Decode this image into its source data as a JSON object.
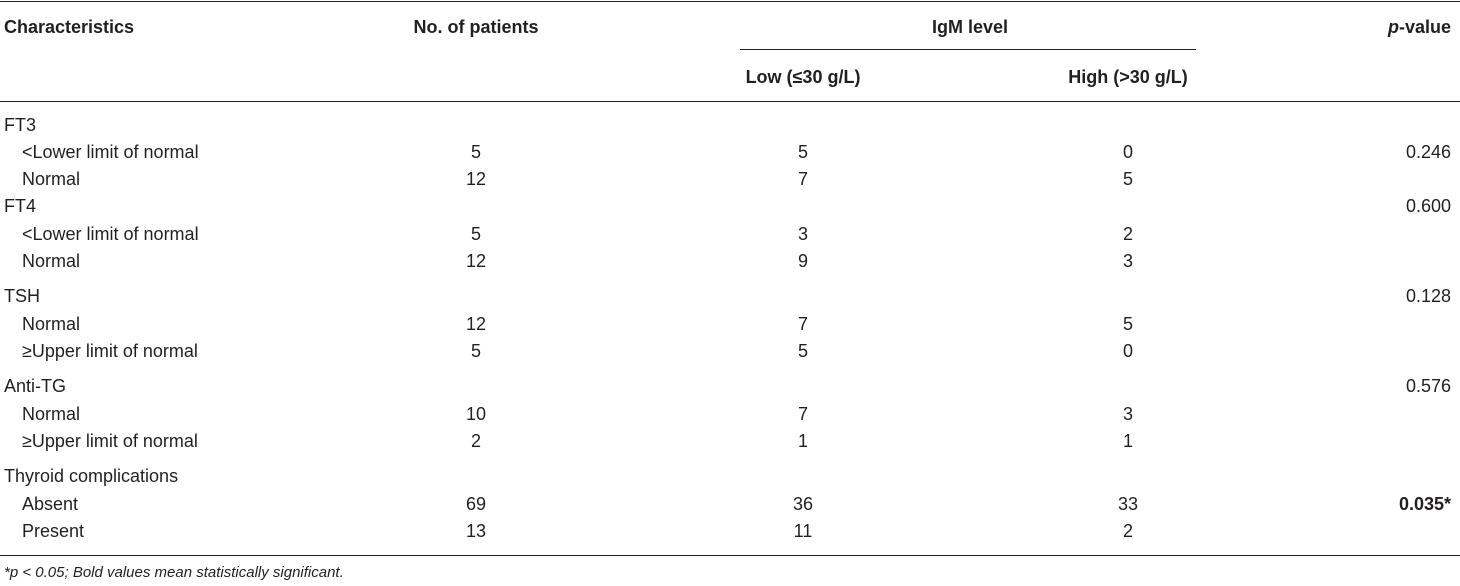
{
  "header": {
    "characteristics": "Characteristics",
    "no_patients": "No. of patients",
    "igm_level": "IgM level",
    "low": "Low (≤30 g/L)",
    "high": "High (>30 g/L)",
    "pvalue_italic": "p",
    "pvalue_rest": "-value"
  },
  "rows": [
    {
      "label": "FT3",
      "n": "",
      "low": "",
      "high": "",
      "p": ""
    },
    {
      "label": "<Lower limit of normal",
      "n": "5",
      "low": "5",
      "high": "0",
      "p": "0.246"
    },
    {
      "label": "Normal",
      "n": "12",
      "low": "7",
      "high": "5",
      "p": ""
    },
    {
      "label": "FT4",
      "n": "",
      "low": "",
      "high": "",
      "p": "0.600"
    },
    {
      "label": "<Lower limit of normal",
      "n": "5",
      "low": "3",
      "high": "2",
      "p": ""
    },
    {
      "label": "Normal",
      "n": "12",
      "low": "9",
      "high": "3",
      "p": ""
    },
    {
      "label": "TSH",
      "n": "",
      "low": "",
      "high": "",
      "p": "0.128"
    },
    {
      "label": "Normal",
      "n": "12",
      "low": "7",
      "high": "5",
      "p": ""
    },
    {
      "label": "≥Upper limit of normal",
      "n": "5",
      "low": "5",
      "high": "0",
      "p": ""
    },
    {
      "label": "Anti-TG",
      "n": "",
      "low": "",
      "high": "",
      "p": "0.576"
    },
    {
      "label": "Normal",
      "n": "10",
      "low": "7",
      "high": "3",
      "p": ""
    },
    {
      "label": "≥Upper limit of normal",
      "n": "2",
      "low": "1",
      "high": "1",
      "p": ""
    },
    {
      "label": "Thyroid complications",
      "n": "",
      "low": "",
      "high": "",
      "p": ""
    },
    {
      "label": "Absent",
      "n": "69",
      "low": "36",
      "high": "33",
      "p": "0.035*"
    },
    {
      "label": "Present",
      "n": "13",
      "low": "11",
      "high": "2",
      "p": ""
    }
  ],
  "footnote": {
    "p_italic": "*p < 0.05; ",
    "rest": "Bold values mean statistically significant."
  }
}
